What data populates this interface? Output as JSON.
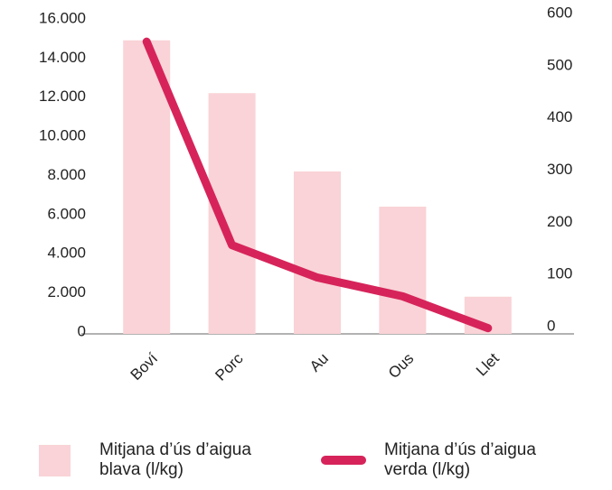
{
  "chart_data": {
    "type": "bar_line",
    "categories": [
      "Boví",
      "Porc",
      "Au",
      "Ous",
      "Llet"
    ],
    "series": [
      {
        "name": "Mitjana d’ús d’aigua blava (l/kg)",
        "color": "#f9d3d7",
        "type": "bar",
        "values": [
          15000,
          12300,
          8300,
          6500,
          1900
        ]
      },
      {
        "name": "Mitjana d’ús d’aigua verda (l/kg)",
        "color": "#d6245a",
        "type": "line",
        "axis": "y2",
        "values": [
          560,
          170,
          108,
          72,
          11
        ]
      }
    ],
    "ylim": [
      0,
      16000
    ],
    "yticks": [
      0,
      {
        "value": 2000,
        "label": "2.000"
      },
      {
        "value": 4000,
        "label": "4.000"
      },
      {
        "value": 6000,
        "label": "6.000"
      },
      {
        "value": 8000,
        "label": "8.000"
      },
      {
        "value": 10000,
        "label": "10.000"
      },
      {
        "value": 12000,
        "label": "12.000"
      },
      {
        "value": 14000,
        "label": "14.000"
      },
      {
        "value": 16000,
        "label": "16.000"
      }
    ],
    "y2lim": [
      0,
      600
    ],
    "y2ticks": [
      0,
      100,
      200,
      300,
      400,
      500,
      600
    ],
    "grid": false
  }
}
